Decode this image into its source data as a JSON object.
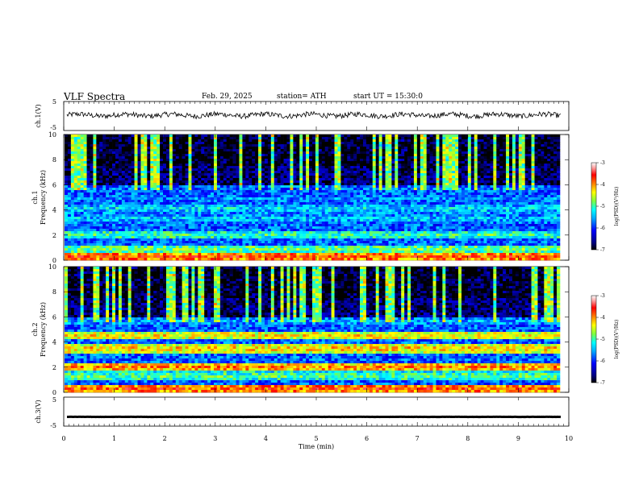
{
  "header": {
    "title": "VLF  Spectra",
    "date": "Feb. 29, 2025",
    "station": "station= ATH",
    "start_ut": "start  UT  =    15:30:0"
  },
  "colors": {
    "spectrogram_scale": [
      "#00007f",
      "#0000ff",
      "#007fff",
      "#00ffff",
      "#7fff7f",
      "#ffff00",
      "#ff7f00",
      "#ff0000",
      "#ff9999",
      "#ffffff"
    ],
    "trace": "#000000"
  },
  "chart_data": [
    {
      "id": "ch1-waveform",
      "type": "line",
      "ylabel": "ch.1(V)",
      "ylim": [
        -5,
        5
      ],
      "yticks": [
        "5",
        "-5"
      ],
      "xlim": [
        0,
        10
      ],
      "description_level": 0.3
    },
    {
      "id": "ch1-spectrogram",
      "type": "heatmap",
      "ylabel_channel": "ch.1",
      "ylabel": "Frequency  (kHz)",
      "xlim": [
        0,
        10
      ],
      "ylim": [
        0,
        10
      ],
      "yticks": [
        "0",
        "2",
        "4",
        "6",
        "8",
        "10"
      ],
      "colorbar": {
        "label": "log(PSD)(V²/Hz)",
        "range": [
          -7,
          -3
        ],
        "ticks": [
          "-3",
          "-4",
          "-5",
          "-6",
          "-7"
        ]
      },
      "bands_khz": [
        {
          "f": 0.3,
          "level": -3.8
        },
        {
          "f": 0.9,
          "level": -4.8
        },
        {
          "f": 2.0,
          "level": -5.0
        },
        {
          "f": 3.3,
          "level": -5.4
        },
        {
          "f": 4.1,
          "level": -5.3
        },
        {
          "f": 4.9,
          "level": -5.6
        }
      ]
    },
    {
      "id": "ch2-spectrogram",
      "type": "heatmap",
      "ylabel_channel": "ch.2",
      "ylabel": "Frequency  (kHz)",
      "xlim": [
        0,
        10
      ],
      "ylim": [
        0,
        10
      ],
      "yticks": [
        "0",
        "2",
        "4",
        "6",
        "8",
        "10"
      ],
      "colorbar": {
        "label": "log(PSD)(V²/Hz)",
        "range": [
          -7,
          -3
        ],
        "ticks": [
          "-3",
          "-4",
          "-5",
          "-6",
          "-7"
        ]
      },
      "bands_khz": [
        {
          "f": 0.3,
          "level": -3.8
        },
        {
          "f": 1.3,
          "level": -4.9
        },
        {
          "f": 2.0,
          "level": -4.0
        },
        {
          "f": 3.5,
          "level": -4.2
        },
        {
          "f": 4.5,
          "level": -4.3
        },
        {
          "f": 5.6,
          "level": -5.5
        }
      ]
    },
    {
      "id": "ch3-waveform",
      "type": "line",
      "ylabel": "ch.3(V)",
      "ylim": [
        -5,
        5
      ],
      "yticks": [
        "5",
        "-5"
      ],
      "xlim": [
        0,
        10
      ],
      "description_level": -1.8
    }
  ],
  "xaxis": {
    "label": "Time  (min)",
    "ticks": [
      "0",
      "1",
      "2",
      "3",
      "4",
      "5",
      "6",
      "7",
      "8",
      "9",
      "10"
    ]
  }
}
